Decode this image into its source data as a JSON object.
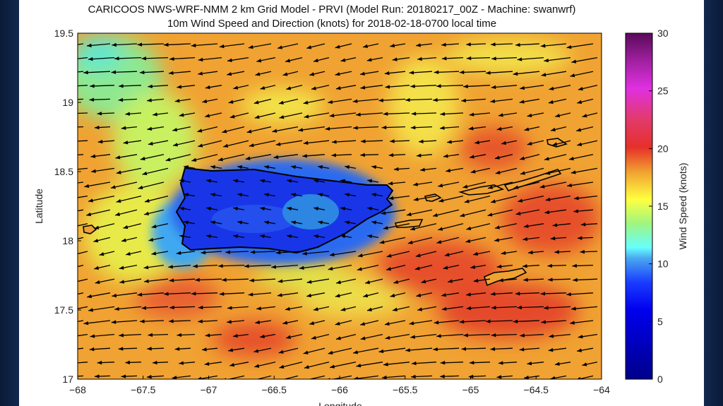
{
  "title": "CARICOOS NWS-WRF-NMM 2 km Grid Model - PRVI (Model Run: 20180217_00Z - Machine: swanwrf)",
  "subtitle": "10m Wind Speed and Direction (knots) for 2018-02-18-0700 local time",
  "chart_data": {
    "type": "heatmap",
    "xlabel": "Longitude",
    "ylabel": "Latitude",
    "xlim": [
      -68,
      -64
    ],
    "ylim": [
      17,
      19.5
    ],
    "xticks": [
      "-68",
      "-67.5",
      "-67",
      "-66.5",
      "-66",
      "-65.5",
      "-65",
      "-64.5",
      "-64"
    ],
    "yticks": [
      "17",
      "17.5",
      "18",
      "18.5",
      "19",
      "19.5"
    ],
    "colorbar": {
      "label": "Wind Speed (knots)",
      "range": [
        0,
        30
      ],
      "ticks": [
        "0",
        "5",
        "10",
        "15",
        "20",
        "25",
        "30"
      ],
      "colormap": "jet-like"
    },
    "vectors": "wind arrows on a regular grid, pointing west-southwest (easterly trade winds)",
    "colors": {
      "ocean_typical": "#f0a232",
      "high_wind": "#e4462a",
      "land_low_wind": "#1030e0"
    }
  }
}
